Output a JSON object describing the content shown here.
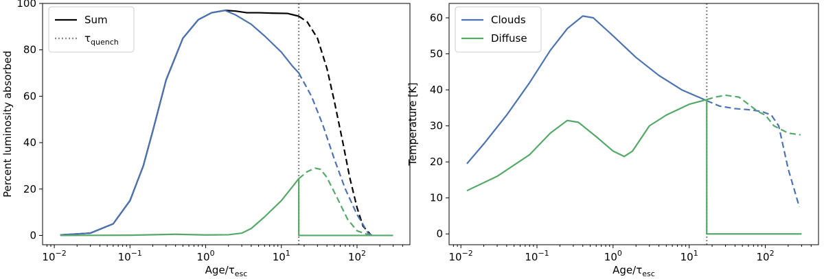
{
  "chart_data": [
    {
      "type": "line",
      "xlabel": "Age/τ",
      "xlabel_sub": "esc",
      "ylabel": "Percent luminosity absorbed",
      "xscale": "log",
      "xlim": [
        0.007,
        500
      ],
      "ylim": [
        -4,
        100
      ],
      "xticks": [
        0.01,
        0.1,
        1,
        10,
        100
      ],
      "xtick_labels": [
        {
          "base": "10",
          "exp": "−2"
        },
        {
          "base": "10",
          "exp": "−1"
        },
        {
          "base": "10",
          "exp": "0"
        },
        {
          "base": "10",
          "exp": "1"
        },
        {
          "base": "10",
          "exp": "2"
        }
      ],
      "yticks": [
        0,
        20,
        40,
        60,
        80,
        100
      ],
      "ytick_labels": [
        "0",
        "20",
        "40",
        "60",
        "80",
        "100"
      ],
      "legend": {
        "position": "top-left",
        "entries": [
          {
            "label": "Sum",
            "color": "#000000",
            "style": "solid"
          },
          {
            "label": "τ",
            "sub": "quench",
            "color": "#888888",
            "style": "dotted"
          }
        ]
      },
      "vline": {
        "x": 17,
        "color": "#888888",
        "style": "dotted"
      },
      "series": [
        {
          "color": "#000000",
          "style": "solid",
          "points": [
            [
              0.012,
              0.2
            ],
            [
              0.03,
              1
            ],
            [
              0.06,
              5
            ],
            [
              0.1,
              15
            ],
            [
              0.15,
              30
            ],
            [
              0.2,
              45
            ],
            [
              0.3,
              67
            ],
            [
              0.5,
              85
            ],
            [
              0.8,
              93
            ],
            [
              1.2,
              96
            ],
            [
              1.8,
              97
            ],
            [
              2.5,
              96.7
            ],
            [
              3.5,
              96
            ],
            [
              5,
              96
            ],
            [
              8,
              95.8
            ],
            [
              12,
              95.7
            ],
            [
              17,
              94.5
            ]
          ]
        },
        {
          "color": "#000000",
          "style": "dashed",
          "points": [
            [
              17,
              94.5
            ],
            [
              22,
              92
            ],
            [
              30,
              85
            ],
            [
              40,
              72
            ],
            [
              50,
              58
            ],
            [
              65,
              40
            ],
            [
              80,
              25
            ],
            [
              100,
              12
            ],
            [
              120,
              4
            ],
            [
              150,
              0.5
            ]
          ]
        },
        {
          "color": "#4c72b0",
          "style": "solid",
          "points": [
            [
              0.012,
              0.2
            ],
            [
              0.03,
              1
            ],
            [
              0.06,
              5
            ],
            [
              0.1,
              15
            ],
            [
              0.15,
              30
            ],
            [
              0.2,
              45
            ],
            [
              0.3,
              67
            ],
            [
              0.5,
              85
            ],
            [
              0.8,
              93
            ],
            [
              1.2,
              96
            ],
            [
              1.8,
              97
            ],
            [
              2.5,
              95
            ],
            [
              4,
              91
            ],
            [
              6,
              86
            ],
            [
              10,
              79
            ],
            [
              14,
              73
            ],
            [
              17,
              70
            ]
          ]
        },
        {
          "color": "#4c72b0",
          "style": "dashed",
          "points": [
            [
              17,
              70
            ],
            [
              25,
              60
            ],
            [
              35,
              48
            ],
            [
              50,
              33
            ],
            [
              70,
              20
            ],
            [
              100,
              9
            ],
            [
              140,
              1
            ],
            [
              160,
              0
            ]
          ]
        },
        {
          "color": "#55a868",
          "style": "solid",
          "points": [
            [
              0.012,
              0
            ],
            [
              0.1,
              0.1
            ],
            [
              0.4,
              0.5
            ],
            [
              1,
              0.2
            ],
            [
              2,
              0.3
            ],
            [
              3,
              1
            ],
            [
              4,
              3
            ],
            [
              6,
              8
            ],
            [
              10,
              15
            ],
            [
              14,
              21
            ],
            [
              17,
              24.5
            ],
            [
              17.01,
              0
            ],
            [
              300,
              0
            ]
          ]
        },
        {
          "color": "#55a868",
          "style": "dashed",
          "points": [
            [
              17,
              24.5
            ],
            [
              22,
              27.5
            ],
            [
              28,
              29
            ],
            [
              33,
              28.5
            ],
            [
              40,
              25
            ],
            [
              55,
              16
            ],
            [
              75,
              7
            ],
            [
              100,
              2
            ],
            [
              150,
              0
            ]
          ]
        }
      ]
    },
    {
      "type": "line",
      "xlabel": "Age/τ",
      "xlabel_sub": "esc",
      "ylabel": "Temperature [K]",
      "xscale": "log",
      "xlim": [
        0.007,
        500
      ],
      "ylim": [
        -3,
        64
      ],
      "xticks": [
        0.01,
        0.1,
        1,
        10,
        100
      ],
      "xtick_labels": [
        {
          "base": "10",
          "exp": "−2"
        },
        {
          "base": "10",
          "exp": "−1"
        },
        {
          "base": "10",
          "exp": "0"
        },
        {
          "base": "10",
          "exp": "1"
        },
        {
          "base": "10",
          "exp": "2"
        }
      ],
      "yticks": [
        0,
        10,
        20,
        30,
        40,
        50,
        60
      ],
      "ytick_labels": [
        "0",
        "10",
        "20",
        "30",
        "40",
        "50",
        "60"
      ],
      "legend": {
        "position": "top-left",
        "entries": [
          {
            "label": "Clouds",
            "color": "#4c72b0",
            "style": "solid"
          },
          {
            "label": "Diffuse",
            "color": "#55a868",
            "style": "solid"
          }
        ]
      },
      "vline": {
        "x": 17,
        "color": "#888888",
        "style": "dotted"
      },
      "series": [
        {
          "color": "#4c72b0",
          "style": "solid",
          "points": [
            [
              0.012,
              19.5
            ],
            [
              0.02,
              25
            ],
            [
              0.04,
              33
            ],
            [
              0.08,
              42
            ],
            [
              0.15,
              51
            ],
            [
              0.25,
              57
            ],
            [
              0.4,
              60.5
            ],
            [
              0.55,
              60
            ],
            [
              1,
              55
            ],
            [
              2,
              49
            ],
            [
              4,
              44
            ],
            [
              8,
              40
            ],
            [
              17,
              37
            ]
          ]
        },
        {
          "color": "#4c72b0",
          "style": "dashed",
          "points": [
            [
              17,
              37
            ],
            [
              25,
              35.5
            ],
            [
              40,
              34.8
            ],
            [
              60,
              34.5
            ],
            [
              90,
              34
            ],
            [
              120,
              33
            ],
            [
              150,
              30
            ],
            [
              200,
              18
            ],
            [
              280,
              7.5
            ]
          ]
        },
        {
          "color": "#55a868",
          "style": "solid",
          "points": [
            [
              0.012,
              12
            ],
            [
              0.03,
              16
            ],
            [
              0.08,
              22
            ],
            [
              0.15,
              28
            ],
            [
              0.25,
              31.5
            ],
            [
              0.35,
              31
            ],
            [
              0.6,
              27
            ],
            [
              1,
              23
            ],
            [
              1.4,
              21.5
            ],
            [
              1.8,
              23
            ],
            [
              3,
              30
            ],
            [
              5,
              33
            ],
            [
              10,
              36
            ],
            [
              17,
              37.3
            ],
            [
              17.01,
              0
            ],
            [
              300,
              0
            ]
          ]
        },
        {
          "color": "#55a868",
          "style": "dashed",
          "points": [
            [
              17,
              37.3
            ],
            [
              22,
              38
            ],
            [
              30,
              38.5
            ],
            [
              45,
              38
            ],
            [
              60,
              36
            ],
            [
              80,
              34
            ],
            [
              100,
              33
            ],
            [
              130,
              30
            ],
            [
              200,
              28
            ],
            [
              290,
              27.5
            ]
          ]
        }
      ]
    }
  ]
}
